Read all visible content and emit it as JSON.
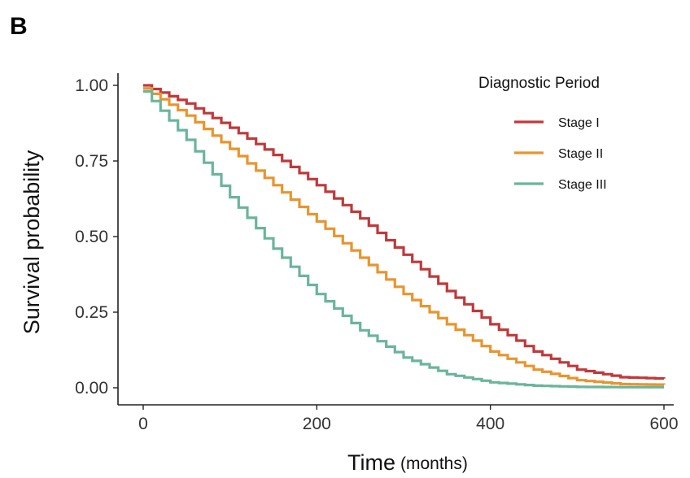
{
  "panel_label": "B",
  "chart_data": {
    "type": "line",
    "step": true,
    "xlabel": "Time",
    "xlabel_unit": "(months)",
    "ylabel": "Survival probability",
    "xlim": [
      0,
      600
    ],
    "ylim": [
      0,
      1
    ],
    "x_ticks": [
      "0",
      "200",
      "400",
      "600"
    ],
    "y_ticks": [
      "0.00",
      "0.25",
      "0.50",
      "0.75",
      "1.00"
    ],
    "grid": false,
    "legend": {
      "title": "Diagnostic Period",
      "position": "top-right"
    },
    "series": [
      {
        "name": "Stage I",
        "color": "#c0393b",
        "points": [
          [
            0,
            1.0
          ],
          [
            50,
            0.94
          ],
          [
            100,
            0.86
          ],
          [
            150,
            0.77
          ],
          [
            200,
            0.67
          ],
          [
            250,
            0.56
          ],
          [
            300,
            0.44
          ],
          [
            350,
            0.32
          ],
          [
            400,
            0.21
          ],
          [
            450,
            0.12
          ],
          [
            500,
            0.06
          ],
          [
            550,
            0.035
          ],
          [
            600,
            0.03
          ]
        ]
      },
      {
        "name": "Stage II",
        "color": "#e8952f",
        "points": [
          [
            0,
            0.99
          ],
          [
            50,
            0.9
          ],
          [
            100,
            0.79
          ],
          [
            150,
            0.67
          ],
          [
            200,
            0.55
          ],
          [
            250,
            0.43
          ],
          [
            300,
            0.31
          ],
          [
            350,
            0.21
          ],
          [
            400,
            0.12
          ],
          [
            450,
            0.06
          ],
          [
            500,
            0.025
          ],
          [
            550,
            0.012
          ],
          [
            600,
            0.01
          ]
        ]
      },
      {
        "name": "Stage III",
        "color": "#6bb59a",
        "points": [
          [
            0,
            0.98
          ],
          [
            50,
            0.82
          ],
          [
            100,
            0.63
          ],
          [
            150,
            0.46
          ],
          [
            200,
            0.31
          ],
          [
            250,
            0.19
          ],
          [
            300,
            0.1
          ],
          [
            350,
            0.045
          ],
          [
            400,
            0.018
          ],
          [
            450,
            0.007
          ],
          [
            500,
            0.003
          ],
          [
            550,
            0.002
          ],
          [
            600,
            0.002
          ]
        ]
      }
    ]
  }
}
